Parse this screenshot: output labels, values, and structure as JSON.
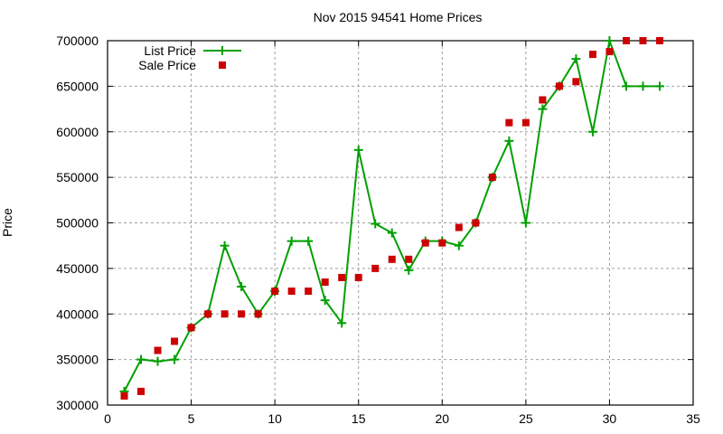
{
  "chart_data": {
    "type": "line",
    "title": "Nov 2015 94541 Home Prices",
    "xlabel": "",
    "ylabel": "Price",
    "xlim": [
      0,
      35
    ],
    "ylim": [
      300000,
      700000
    ],
    "xticks": [
      0,
      5,
      10,
      15,
      20,
      25,
      30,
      35
    ],
    "yticks": [
      300000,
      350000,
      400000,
      450000,
      500000,
      550000,
      600000,
      650000,
      700000
    ],
    "grid": true,
    "legend_position": "top-left",
    "x": [
      1,
      2,
      3,
      4,
      5,
      6,
      7,
      8,
      9,
      10,
      11,
      12,
      13,
      14,
      15,
      16,
      17,
      18,
      19,
      20,
      21,
      22,
      23,
      24,
      25,
      26,
      27,
      28,
      29,
      30,
      31,
      32,
      33
    ],
    "series": [
      {
        "name": "List Price",
        "style": "linespoints",
        "color": "#00a000",
        "values": [
          315000,
          350000,
          348000,
          350000,
          385000,
          400000,
          475000,
          430000,
          400000,
          425000,
          480000,
          480000,
          415000,
          390000,
          580000,
          499000,
          489000,
          448000,
          480000,
          480000,
          475000,
          500000,
          550000,
          590000,
          500000,
          625000,
          650000,
          680000,
          600000,
          700000,
          650000,
          650000,
          650000
        ]
      },
      {
        "name": "Sale Price",
        "style": "points",
        "color": "#cc0000",
        "values": [
          310000,
          315000,
          360000,
          370000,
          385000,
          400000,
          400000,
          400000,
          400000,
          425000,
          425000,
          425000,
          435000,
          440000,
          440000,
          450000,
          460000,
          460000,
          478000,
          478000,
          495000,
          500000,
          550000,
          610000,
          610000,
          635000,
          650000,
          655000,
          685000,
          688000,
          700000,
          700000,
          700000
        ]
      }
    ]
  }
}
